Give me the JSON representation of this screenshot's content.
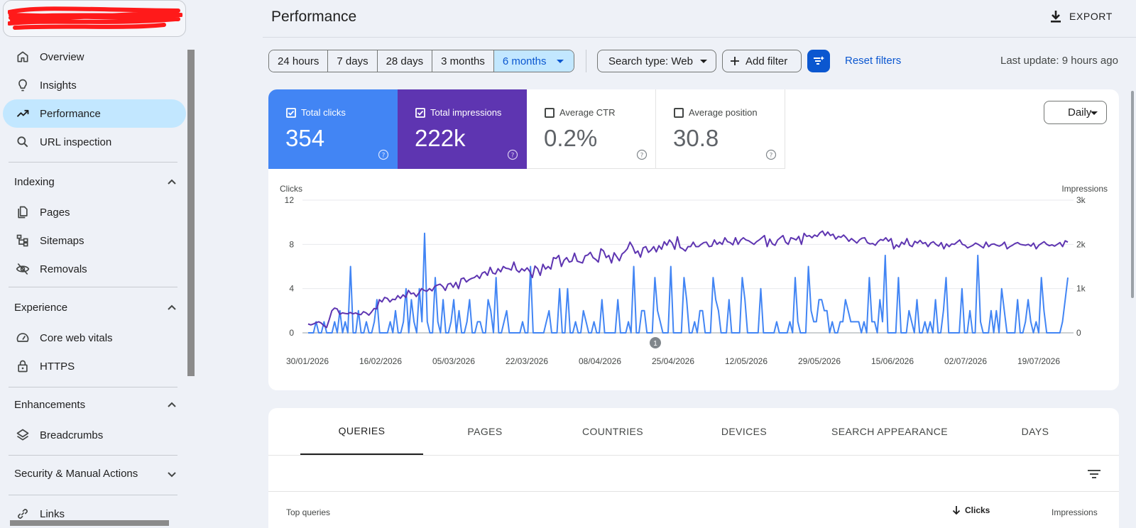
{
  "sidebar": {
    "items": [
      {
        "label": "Overview",
        "icon": "home-icon"
      },
      {
        "label": "Insights",
        "icon": "lightbulb-icon"
      },
      {
        "label": "Performance",
        "icon": "trending-up-icon",
        "active": true
      },
      {
        "label": "URL inspection",
        "icon": "search-icon"
      }
    ],
    "sections": [
      {
        "label": "Indexing",
        "items": [
          {
            "label": "Pages",
            "icon": "pages-icon"
          },
          {
            "label": "Sitemaps",
            "icon": "sitemap-icon"
          },
          {
            "label": "Removals",
            "icon": "eye-off-icon"
          }
        ]
      },
      {
        "label": "Experience",
        "items": [
          {
            "label": "Core web vitals",
            "icon": "gauge-icon"
          },
          {
            "label": "HTTPS",
            "icon": "lock-icon"
          }
        ]
      },
      {
        "label": "Enhancements",
        "items": [
          {
            "label": "Breadcrumbs",
            "icon": "layers-icon"
          }
        ]
      },
      {
        "label": "Security & Manual Actions",
        "items": []
      }
    ],
    "links_label": "Links"
  },
  "header": {
    "title": "Performance",
    "export_label": "EXPORT"
  },
  "filters": {
    "ranges": [
      "24 hours",
      "7 days",
      "28 days",
      "3 months",
      "6 months"
    ],
    "selected_range": "6 months",
    "search_type": "Search type: Web",
    "add_filter": "Add filter",
    "reset": "Reset filters",
    "last_update": "Last update: 9 hours ago"
  },
  "metrics": {
    "clicks": {
      "label": "Total clicks",
      "value": "354",
      "checked": true,
      "color": "#4285f4"
    },
    "impressions": {
      "label": "Total impressions",
      "value": "222k",
      "checked": true,
      "color": "#5e35b1"
    },
    "ctr": {
      "label": "Average CTR",
      "value": "0.2%",
      "checked": false
    },
    "position": {
      "label": "Average position",
      "value": "30.8",
      "checked": false
    }
  },
  "granularity": "Daily",
  "chart_data": {
    "type": "line",
    "left_axis_label": "Clicks",
    "right_axis_label": "Impressions",
    "left_ticks": [
      "12",
      "8",
      "4",
      "0"
    ],
    "right_ticks": [
      "3k",
      "2k",
      "1k",
      "0"
    ],
    "ylim_left": [
      0,
      12
    ],
    "ylim_right": [
      0,
      3000
    ],
    "x_labels": [
      "30/01/2026",
      "16/02/2026",
      "05/03/2026",
      "22/03/2026",
      "08/04/2026",
      "25/04/2026",
      "12/05/2026",
      "29/05/2026",
      "15/06/2026",
      "02/07/2026",
      "19/07/2026"
    ],
    "x_start": "2026-01-30",
    "annotation": {
      "label": "1",
      "date": "2026-04-25"
    },
    "series": [
      {
        "name": "Clicks",
        "axis": "left",
        "color": "#4285f4",
        "values": [
          0,
          0,
          0,
          1,
          0,
          0,
          1,
          0,
          0,
          0,
          1,
          0,
          2,
          0,
          1,
          0,
          6,
          0,
          0,
          2,
          0,
          0,
          1,
          0,
          0,
          1,
          3,
          0,
          0,
          0,
          0,
          1,
          0,
          2,
          0,
          0,
          1,
          4,
          0,
          3,
          1,
          0,
          4,
          1,
          9,
          1,
          0,
          0,
          5,
          1,
          0,
          3,
          0,
          0,
          1,
          3,
          0,
          2,
          0,
          0,
          1,
          3,
          0,
          0,
          1,
          1,
          0,
          0,
          3,
          2,
          0,
          5,
          0,
          0,
          1,
          2,
          0,
          0,
          0,
          0,
          0,
          1,
          0,
          0,
          6,
          0,
          0,
          0,
          0,
          0,
          1,
          2,
          0,
          0,
          0,
          4,
          0,
          0,
          4,
          0,
          0,
          1,
          0,
          0,
          2,
          1,
          0,
          0,
          1,
          0,
          0,
          3,
          0,
          0,
          0,
          0,
          0,
          3,
          0,
          0,
          0,
          1,
          0,
          6,
          0,
          0,
          2,
          2,
          0,
          0,
          0,
          5,
          2,
          1,
          0,
          0,
          0,
          6,
          0,
          0,
          0,
          0,
          5,
          3,
          0,
          0,
          1,
          0,
          2,
          2,
          0,
          0,
          0,
          5,
          3,
          2,
          0,
          0,
          0,
          3,
          0,
          0,
          0,
          0,
          5,
          3,
          0,
          0,
          0,
          0,
          0,
          4,
          0,
          0,
          0,
          0,
          0,
          1,
          0,
          0,
          0,
          0,
          1,
          0,
          5,
          1,
          0,
          0,
          0,
          6,
          2,
          1,
          1,
          3,
          3,
          2,
          2,
          0,
          1,
          0,
          0,
          1,
          1,
          3,
          2,
          1,
          1,
          1,
          1,
          0,
          1,
          0,
          5,
          1,
          1,
          0,
          3,
          1,
          7,
          0,
          0,
          0,
          0,
          5,
          0,
          0,
          0,
          2,
          1,
          0,
          3,
          0,
          0,
          1,
          0,
          1,
          0,
          3,
          0,
          0,
          2,
          5,
          0,
          0,
          0,
          0,
          0,
          4,
          0,
          0,
          2,
          0,
          0,
          7,
          1,
          0,
          0,
          0,
          2,
          0,
          2,
          0,
          4,
          2,
          0,
          0,
          0,
          0,
          3,
          0,
          0,
          1,
          3,
          1,
          0,
          1,
          0,
          5,
          2,
          0,
          0,
          0,
          0,
          0,
          0,
          1,
          3,
          5
        ]
      },
      {
        "name": "Impressions",
        "axis": "right",
        "color": "#5e35b1",
        "values": [
          200,
          180,
          200,
          230,
          250,
          220,
          160,
          120,
          300,
          500,
          560,
          540,
          420,
          450,
          440,
          430,
          460,
          430,
          450,
          420,
          410,
          480,
          450,
          400,
          470,
          550,
          540,
          750,
          700,
          800,
          780,
          700,
          760,
          750,
          840,
          780,
          860,
          800,
          960,
          880,
          900,
          820,
          900,
          1000,
          960,
          940,
          1000,
          950,
          1050,
          1080,
          1100,
          1050,
          960,
          1100,
          1120,
          1030,
          1140,
          1000,
          1220,
          1240,
          1150,
          1200,
          1230,
          1250,
          1300,
          1230,
          1350,
          1380,
          1300,
          1480,
          1350,
          1330,
          1450,
          1380,
          1500,
          1460,
          1450,
          1420,
          1600,
          1420,
          1370,
          1450,
          1400,
          1470,
          1390,
          1250,
          1510,
          1450,
          1300,
          1550,
          1440,
          1500,
          1440,
          1700,
          1680,
          1750,
          1500,
          1640,
          1700,
          1600,
          1620,
          1800,
          1620,
          1600,
          1580,
          1740,
          1760,
          1820,
          1700,
          1660,
          1600,
          1900,
          1850,
          1700,
          1750,
          1580,
          1810,
          1720,
          1630,
          1780,
          1830,
          1900,
          2050,
          1950,
          1800,
          1850,
          1710,
          1920,
          1950,
          1820,
          1870,
          1950,
          1830,
          1970,
          1890,
          2060,
          1980,
          2100,
          2030,
          1890,
          2170,
          1930,
          1900,
          1850,
          1950,
          1950,
          2050,
          1950,
          1950,
          2000,
          2040,
          2050,
          1950,
          1960,
          2100,
          2000,
          2050,
          2000,
          2150,
          2060,
          2040,
          1990,
          2150,
          2000,
          2100,
          2150,
          2100,
          2080,
          2040,
          2000,
          2060,
          2100,
          2150,
          2200,
          1950,
          2120,
          2010,
          1980,
          2100,
          2150,
          2200,
          2050,
          2000,
          2150,
          2130,
          2100,
          2180,
          2000,
          2250,
          2180,
          2200,
          2150,
          2210,
          2180,
          2260,
          2300,
          2200,
          2280,
          2200,
          2230,
          2120,
          2180,
          2160,
          2210,
          2150,
          2070,
          2130,
          2080,
          2030,
          2100,
          2140,
          2150,
          2040,
          2010,
          2020,
          1980,
          2060,
          2110,
          2090,
          2150,
          2070,
          2130,
          1900,
          1990,
          1940,
          2050,
          2000,
          2130,
          1980,
          1950,
          2070,
          2030,
          2090,
          2020,
          2040,
          1950,
          2030,
          2060,
          2000,
          1960,
          2040,
          1900,
          2010,
          1950,
          2010,
          2000,
          2050,
          2100,
          2000,
          1980,
          1920,
          1950,
          1980,
          2030,
          2000,
          1960,
          1920,
          2050,
          1950,
          2000,
          2010,
          1980,
          1960,
          1990,
          2050,
          1900,
          1950,
          1980,
          2020,
          2040,
          2000,
          1990,
          1980,
          2000,
          1960,
          2030,
          1900,
          1980,
          2020,
          2060,
          2000,
          1970,
          1990,
          1960,
          2000,
          2040,
          1950,
          2080,
          2050
        ]
      }
    ]
  },
  "tabs": [
    "QUERIES",
    "PAGES",
    "COUNTRIES",
    "DEVICES",
    "SEARCH APPEARANCE",
    "DAYS"
  ],
  "selected_tab": "QUERIES",
  "table": {
    "title": "Top queries",
    "columns": [
      "Clicks",
      "Impressions"
    ],
    "sort_column": "Clicks"
  }
}
